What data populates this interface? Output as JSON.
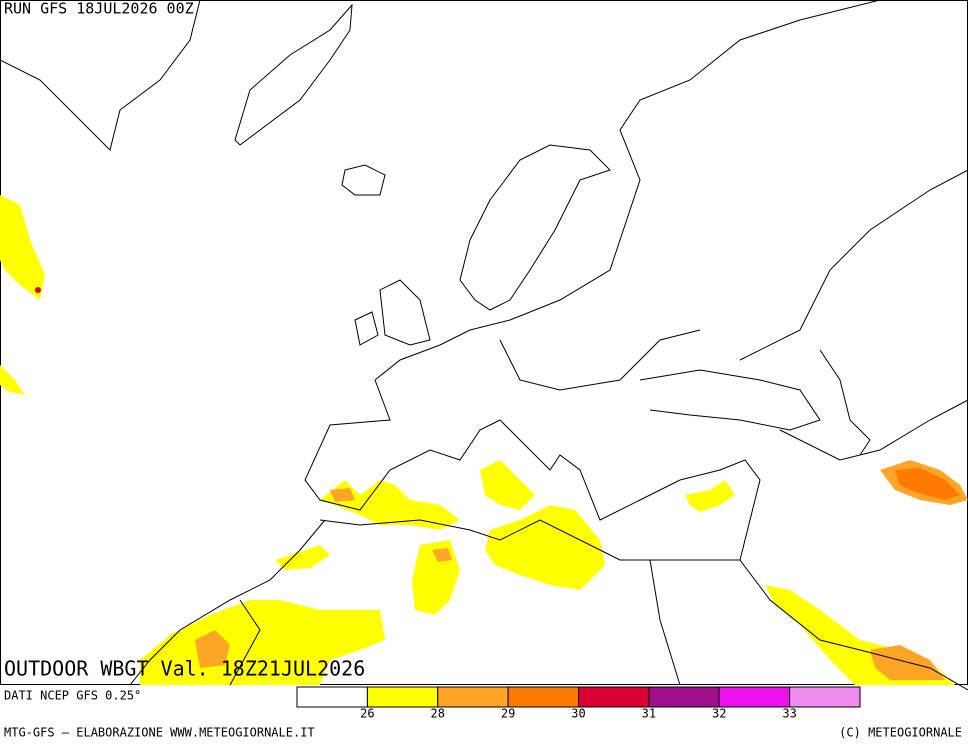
{
  "header": {
    "run": "RUN GFS 18JUL2026 00Z"
  },
  "map": {
    "title": "OUTDOOR WBGT Val. 18Z21JUL2026"
  },
  "footer": {
    "source": "DATI NCEP GFS 0.25°",
    "credit": "MTG-GFS — ELABORAZIONE WWW.METEOGIORNALE.IT",
    "copyright": "(C) METEOGIORNALE"
  },
  "legend": {
    "colors": [
      "#ffffff",
      "#ffff00",
      "#ffa526",
      "#ff7a00",
      "#dc0032",
      "#a0108c",
      "#ee10ee",
      "#f08cf0"
    ],
    "labels": [
      26,
      28,
      29,
      30,
      31,
      32,
      33
    ]
  }
}
